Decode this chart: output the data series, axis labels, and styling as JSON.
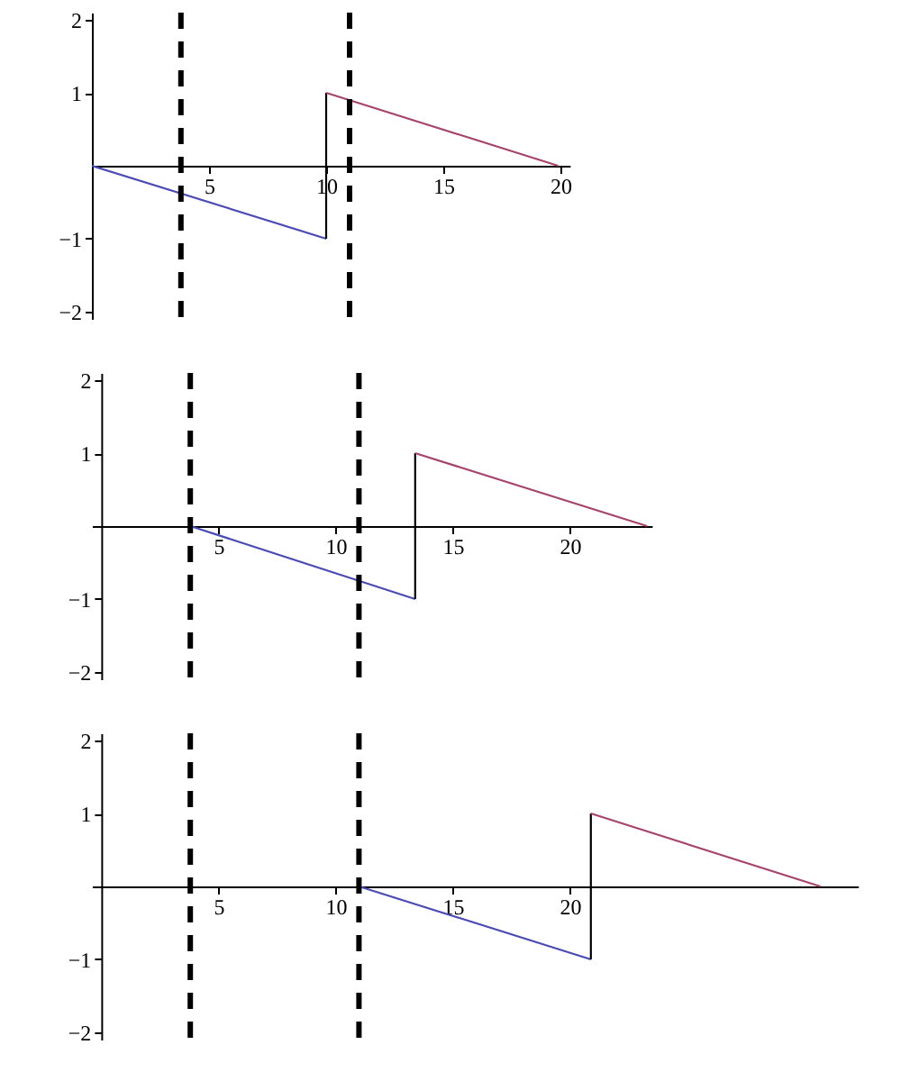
{
  "chart_data": [
    {
      "type": "line",
      "xlim": [
        0,
        20.4
      ],
      "ylim": [
        -2.1,
        2.1
      ],
      "xticks": [
        5,
        10,
        15,
        20
      ],
      "yticks": [
        -2,
        -1,
        1,
        2
      ],
      "grid": false,
      "marker": "none",
      "series": [
        {
          "color": "#4b4bb4",
          "x": [
            0,
            10
          ],
          "values": [
            0,
            -1
          ]
        },
        {
          "color": "#000000",
          "x": [
            10,
            10
          ],
          "values": [
            -1,
            1
          ]
        },
        {
          "color": "#a5456e",
          "x": [
            10,
            19.9
          ],
          "values": [
            1,
            0
          ]
        }
      ],
      "ref_lines": [
        {
          "axis": "x",
          "value": 3.8,
          "line_style": "dashed",
          "color": "#000000"
        },
        {
          "axis": "x",
          "value": 11,
          "line_style": "dashed",
          "color": "#000000"
        }
      ]
    },
    {
      "type": "line",
      "xlim": [
        -0.4,
        23.5
      ],
      "ylim": [
        -2.1,
        2.1
      ],
      "xticks": [
        5,
        10,
        15,
        20
      ],
      "yticks": [
        -2,
        -1,
        1,
        2
      ],
      "grid": false,
      "marker": "none",
      "series": [
        {
          "color": "#4b4bb4",
          "x": [
            3.8,
            13.4
          ],
          "values": [
            0,
            -1
          ]
        },
        {
          "color": "#000000",
          "x": [
            13.4,
            13.4
          ],
          "values": [
            -1,
            1
          ]
        },
        {
          "color": "#a5456e",
          "x": [
            13.4,
            23.3
          ],
          "values": [
            1,
            0
          ]
        }
      ],
      "ref_lines": [
        {
          "axis": "x",
          "value": 3.8,
          "line_style": "dashed",
          "color": "#000000"
        },
        {
          "axis": "x",
          "value": 11,
          "line_style": "dashed",
          "color": "#000000"
        }
      ]
    },
    {
      "type": "line",
      "xlim": [
        -0.4,
        32.3
      ],
      "ylim": [
        -2.1,
        2.1
      ],
      "xticks": [
        5,
        10,
        15,
        20
      ],
      "yticks": [
        -2,
        -1,
        1,
        2
      ],
      "grid": false,
      "marker": "none",
      "series": [
        {
          "color": "#4b4bb4",
          "x": [
            11,
            20.9
          ],
          "values": [
            0,
            -1
          ]
        },
        {
          "color": "#000000",
          "x": [
            20.9,
            20.9
          ],
          "values": [
            -1,
            1
          ]
        },
        {
          "color": "#a5456e",
          "x": [
            20.9,
            30.7
          ],
          "values": [
            1,
            0
          ]
        }
      ],
      "ref_lines": [
        {
          "axis": "x",
          "value": 3.8,
          "line_style": "dashed",
          "color": "#000000"
        },
        {
          "axis": "x",
          "value": 11,
          "line_style": "dashed",
          "color": "#000000"
        }
      ]
    }
  ]
}
